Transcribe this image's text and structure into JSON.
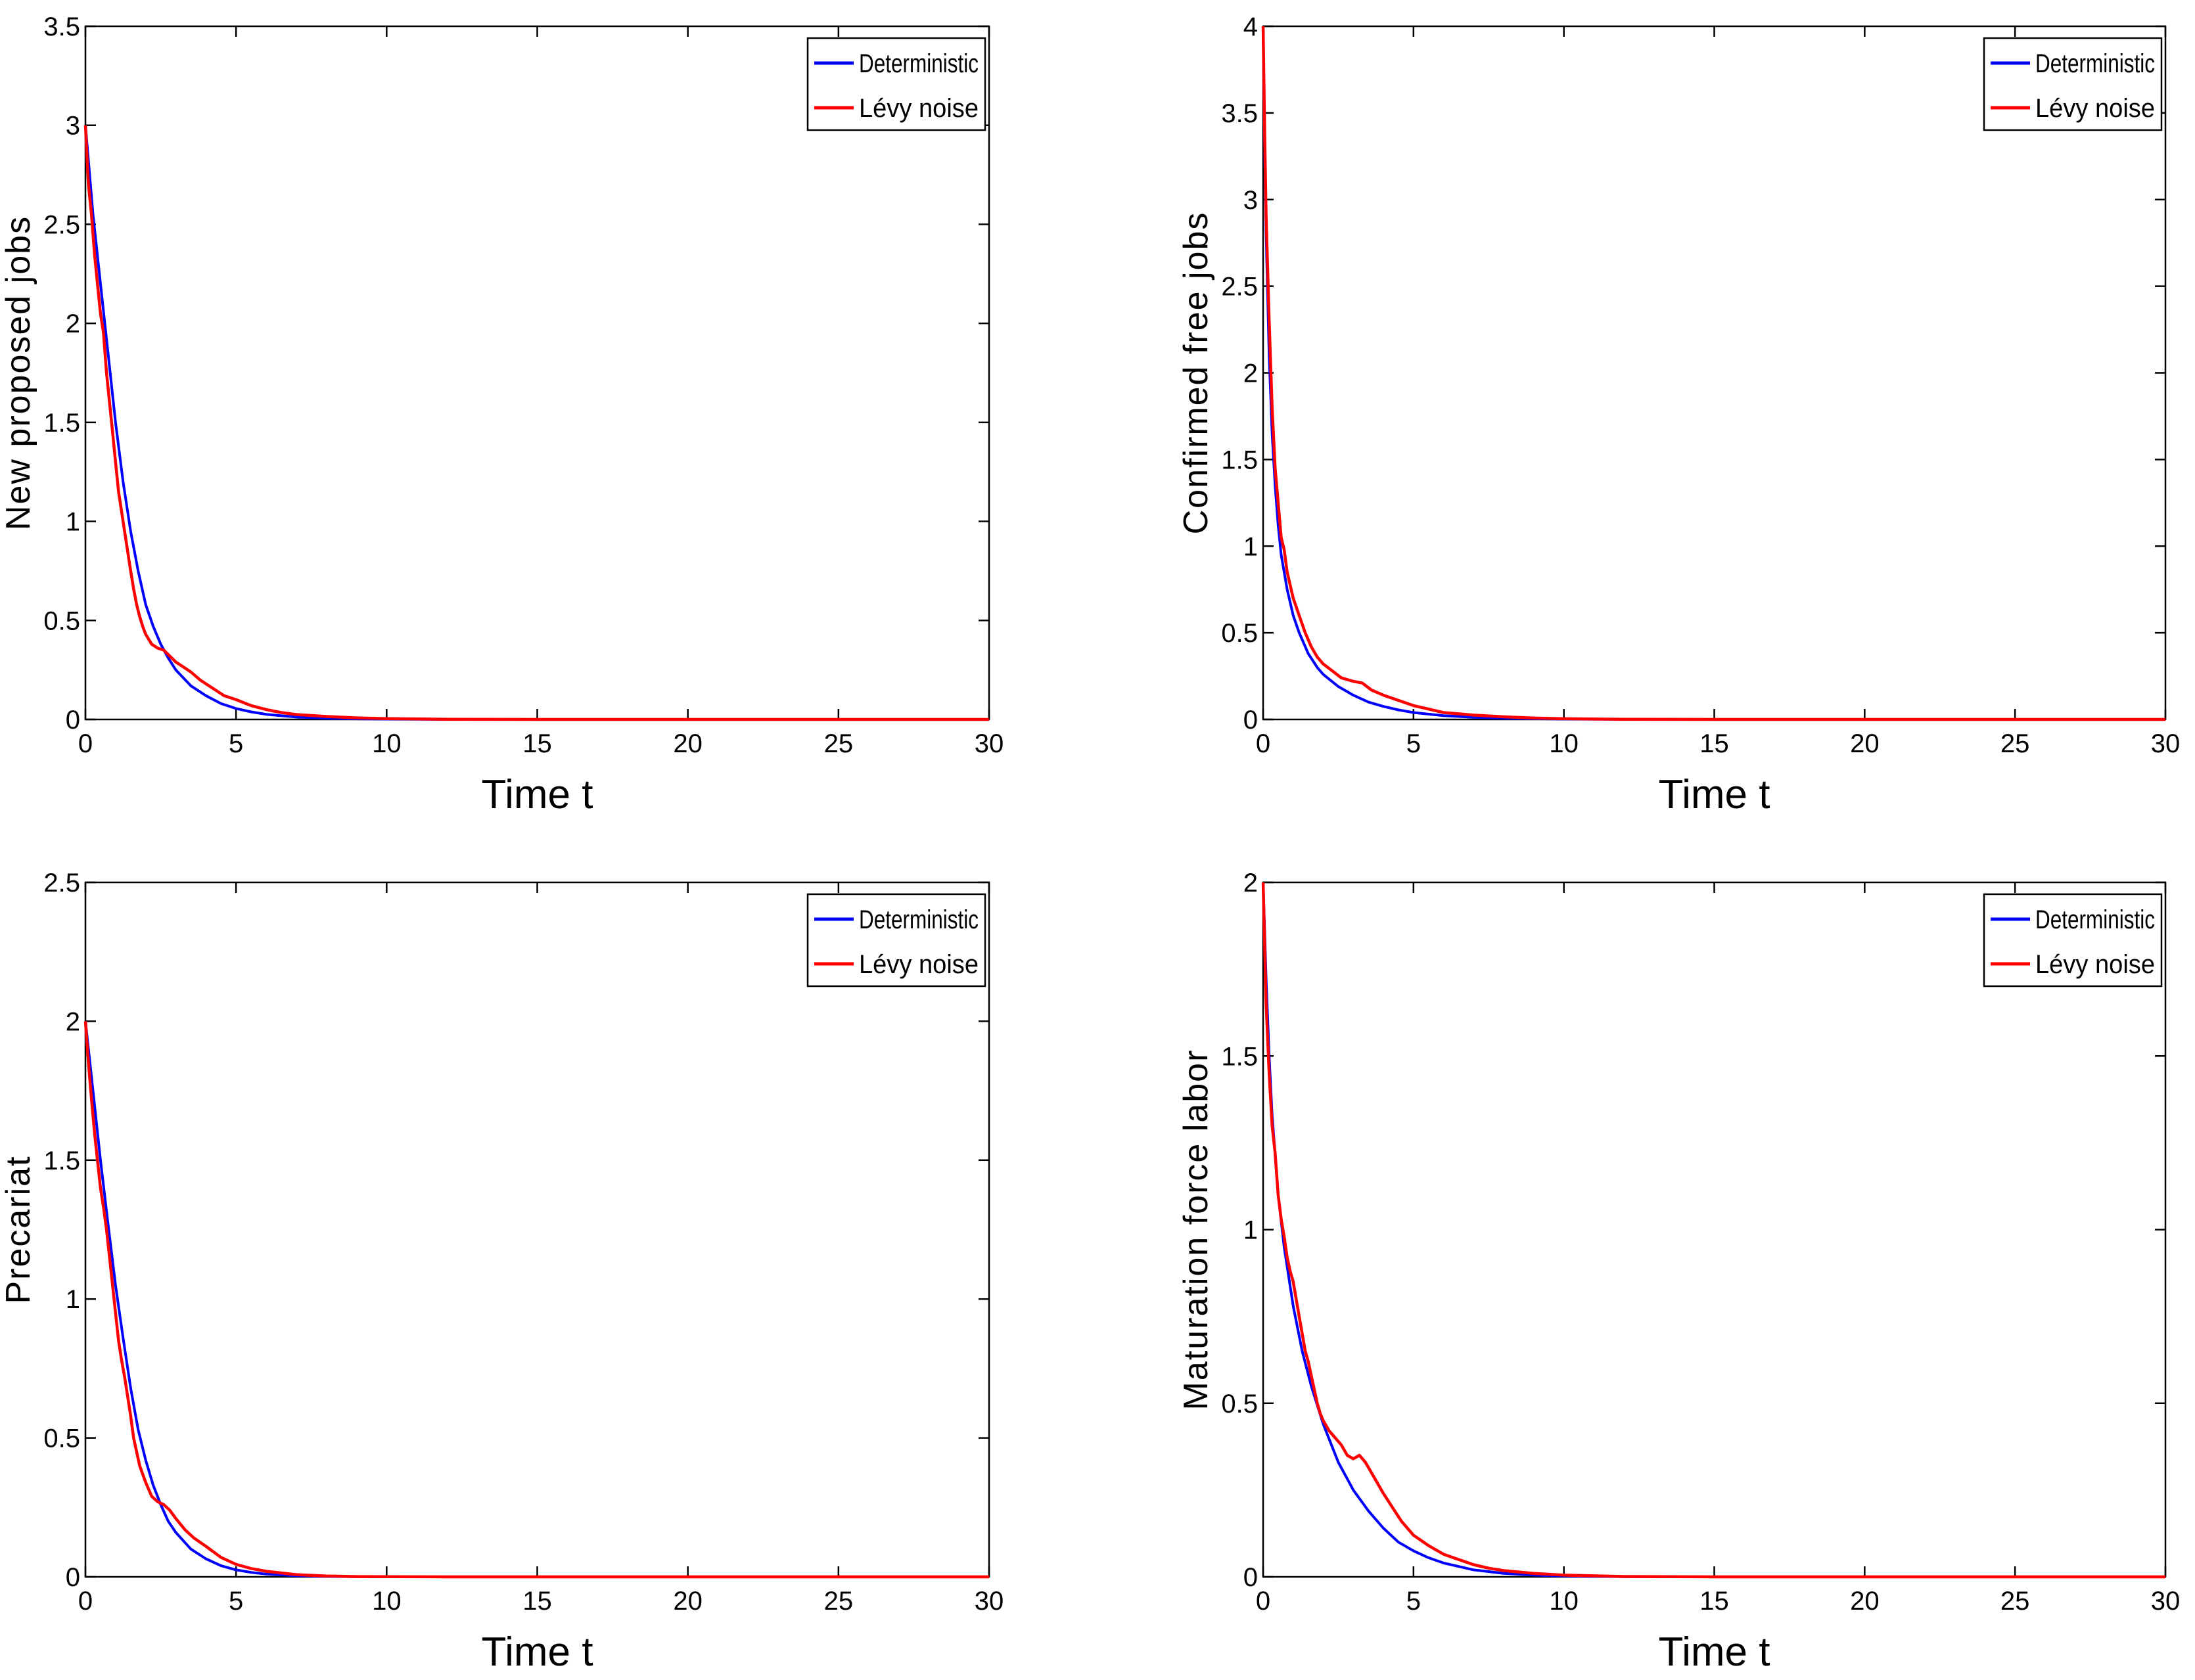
{
  "colors": {
    "deterministic": "#0000ff",
    "levy": "#ff0000"
  },
  "chart_data": [
    {
      "type": "line",
      "ylabel": "New proposed jobs",
      "xlabel": "Time t",
      "xlim": [
        0,
        30
      ],
      "ylim": [
        0,
        3.5
      ],
      "xticks": [
        0,
        5,
        10,
        15,
        20,
        25,
        30
      ],
      "yticks": [
        0,
        0.5,
        1,
        1.5,
        2,
        2.5,
        3,
        3.5
      ],
      "grid": false,
      "legend_position": "top-right",
      "series": [
        {
          "name": "Deterministic",
          "color": "#0000ff",
          "x": [
            0,
            0.25,
            0.5,
            0.75,
            1,
            1.25,
            1.5,
            1.75,
            2,
            2.25,
            2.5,
            2.75,
            3,
            3.5,
            4,
            4.5,
            5,
            5.5,
            6,
            7,
            8,
            9,
            10,
            12,
            15,
            20,
            25,
            30
          ],
          "y": [
            3.0,
            2.55,
            2.2,
            1.85,
            1.5,
            1.2,
            0.95,
            0.75,
            0.58,
            0.47,
            0.38,
            0.31,
            0.25,
            0.17,
            0.12,
            0.08,
            0.055,
            0.038,
            0.026,
            0.012,
            0.006,
            0.003,
            0.0015,
            0.0004,
            0,
            0,
            0,
            0
          ]
        },
        {
          "name": "Lévy noise",
          "color": "#ff0000",
          "x": [
            0,
            0.1,
            0.2,
            0.3,
            0.4,
            0.5,
            0.6,
            0.7,
            0.8,
            0.9,
            1.0,
            1.1,
            1.2,
            1.3,
            1.4,
            1.5,
            1.6,
            1.7,
            1.8,
            1.9,
            2.0,
            2.2,
            2.4,
            2.6,
            2.8,
            3.0,
            3.2,
            3.5,
            3.8,
            4.0,
            4.3,
            4.6,
            5.0,
            5.5,
            6.0,
            6.5,
            7.0,
            8.0,
            9.0,
            10,
            12,
            15,
            20,
            25,
            30
          ],
          "y": [
            3.0,
            2.7,
            2.55,
            2.35,
            2.2,
            2.05,
            1.95,
            1.75,
            1.6,
            1.45,
            1.3,
            1.15,
            1.05,
            0.95,
            0.85,
            0.75,
            0.66,
            0.58,
            0.52,
            0.47,
            0.43,
            0.38,
            0.36,
            0.35,
            0.32,
            0.29,
            0.27,
            0.24,
            0.2,
            0.18,
            0.15,
            0.12,
            0.1,
            0.07,
            0.05,
            0.035,
            0.025,
            0.015,
            0.008,
            0.004,
            0.001,
            0,
            0,
            0,
            0
          ]
        }
      ]
    },
    {
      "type": "line",
      "ylabel": "Confirmed free jobs",
      "xlabel": "Time t",
      "xlim": [
        0,
        30
      ],
      "ylim": [
        0,
        4
      ],
      "xticks": [
        0,
        5,
        10,
        15,
        20,
        25,
        30
      ],
      "yticks": [
        0,
        0.5,
        1,
        1.5,
        2,
        2.5,
        3,
        3.5,
        4
      ],
      "grid": false,
      "legend_position": "top-right",
      "series": [
        {
          "name": "Deterministic",
          "color": "#0000ff",
          "x": [
            0,
            0.05,
            0.1,
            0.2,
            0.3,
            0.4,
            0.5,
            0.6,
            0.8,
            1.0,
            1.2,
            1.5,
            1.8,
            2.0,
            2.5,
            3.0,
            3.5,
            4.0,
            4.5,
            5.0,
            6.0,
            7.0,
            8.0,
            10,
            12,
            15,
            20,
            25,
            30
          ],
          "y": [
            4.0,
            3.3,
            2.8,
            2.1,
            1.65,
            1.35,
            1.12,
            0.95,
            0.75,
            0.6,
            0.5,
            0.38,
            0.3,
            0.26,
            0.19,
            0.14,
            0.1,
            0.075,
            0.055,
            0.04,
            0.022,
            0.012,
            0.007,
            0.002,
            0.0006,
            0,
            0,
            0,
            0
          ]
        },
        {
          "name": "Lévy noise",
          "color": "#ff0000",
          "x": [
            0,
            0.05,
            0.1,
            0.2,
            0.3,
            0.4,
            0.5,
            0.6,
            0.7,
            0.8,
            1.0,
            1.2,
            1.4,
            1.6,
            1.8,
            2.0,
            2.3,
            2.6,
            3.0,
            3.3,
            3.6,
            4.0,
            4.5,
            5.0,
            5.5,
            6.0,
            7.0,
            8.0,
            9.0,
            10,
            12,
            15,
            20,
            25,
            30
          ],
          "y": [
            4.0,
            3.4,
            2.9,
            2.3,
            1.8,
            1.45,
            1.25,
            1.05,
            0.98,
            0.85,
            0.7,
            0.6,
            0.5,
            0.42,
            0.36,
            0.32,
            0.28,
            0.24,
            0.22,
            0.21,
            0.17,
            0.14,
            0.11,
            0.08,
            0.06,
            0.04,
            0.025,
            0.015,
            0.008,
            0.004,
            0.001,
            0,
            0,
            0,
            0
          ]
        }
      ]
    },
    {
      "type": "line",
      "ylabel": "Precariat",
      "xlabel": "Time t",
      "xlim": [
        0,
        30
      ],
      "ylim": [
        0,
        2.5
      ],
      "xticks": [
        0,
        5,
        10,
        15,
        20,
        25,
        30
      ],
      "yticks": [
        0,
        0.5,
        1,
        1.5,
        2,
        2.5
      ],
      "grid": false,
      "legend_position": "top-right",
      "series": [
        {
          "name": "Deterministic",
          "color": "#0000ff",
          "x": [
            0,
            0.25,
            0.5,
            0.75,
            1.0,
            1.25,
            1.5,
            1.75,
            2.0,
            2.25,
            2.5,
            2.75,
            3.0,
            3.5,
            4.0,
            4.5,
            5.0,
            5.5,
            6.0,
            7.0,
            8.0,
            9.0,
            10,
            12,
            15,
            20,
            25,
            30
          ],
          "y": [
            2.0,
            1.75,
            1.5,
            1.27,
            1.05,
            0.86,
            0.68,
            0.53,
            0.42,
            0.33,
            0.26,
            0.2,
            0.16,
            0.1,
            0.065,
            0.04,
            0.025,
            0.016,
            0.01,
            0.004,
            0.0015,
            0.0006,
            0.0002,
            0,
            0,
            0,
            0,
            0
          ]
        },
        {
          "name": "Lévy noise",
          "color": "#ff0000",
          "x": [
            0,
            0.1,
            0.2,
            0.3,
            0.4,
            0.5,
            0.6,
            0.7,
            0.8,
            0.9,
            1.0,
            1.1,
            1.2,
            1.3,
            1.4,
            1.5,
            1.6,
            1.7,
            1.8,
            2.0,
            2.2,
            2.4,
            2.6,
            2.8,
            3.0,
            3.3,
            3.6,
            4.0,
            4.5,
            5.0,
            5.5,
            6.0,
            7.0,
            8.0,
            9.0,
            10,
            12,
            15,
            20,
            25,
            30
          ],
          "y": [
            2.0,
            1.85,
            1.72,
            1.6,
            1.5,
            1.4,
            1.33,
            1.25,
            1.15,
            1.05,
            0.95,
            0.85,
            0.78,
            0.72,
            0.65,
            0.58,
            0.5,
            0.45,
            0.4,
            0.34,
            0.29,
            0.27,
            0.26,
            0.24,
            0.21,
            0.17,
            0.14,
            0.11,
            0.07,
            0.045,
            0.03,
            0.02,
            0.008,
            0.003,
            0.001,
            0.0005,
            0,
            0,
            0,
            0,
            0
          ]
        }
      ]
    },
    {
      "type": "line",
      "ylabel": "Maturation force labor",
      "xlabel": "Time t",
      "xlim": [
        0,
        30
      ],
      "ylim": [
        0,
        2
      ],
      "xticks": [
        0,
        5,
        10,
        15,
        20,
        25,
        30
      ],
      "yticks": [
        0,
        0.5,
        1,
        1.5,
        2
      ],
      "grid": false,
      "legend_position": "top-right",
      "series": [
        {
          "name": "Deterministic",
          "color": "#0000ff",
          "x": [
            0,
            0.1,
            0.2,
            0.3,
            0.5,
            0.7,
            1.0,
            1.3,
            1.6,
            2.0,
            2.5,
            3.0,
            3.5,
            4.0,
            4.5,
            5.0,
            5.5,
            6.0,
            7.0,
            8.0,
            9.0,
            10,
            12,
            15,
            20,
            25,
            30
          ],
          "y": [
            2.0,
            1.72,
            1.5,
            1.33,
            1.1,
            0.95,
            0.78,
            0.65,
            0.55,
            0.44,
            0.33,
            0.25,
            0.19,
            0.14,
            0.1,
            0.075,
            0.055,
            0.04,
            0.02,
            0.01,
            0.005,
            0.0025,
            0.0006,
            0,
            0,
            0,
            0
          ]
        },
        {
          "name": "Lévy noise",
          "color": "#ff0000",
          "x": [
            0,
            0.1,
            0.2,
            0.3,
            0.4,
            0.5,
            0.6,
            0.7,
            0.8,
            0.9,
            1.0,
            1.1,
            1.2,
            1.3,
            1.4,
            1.5,
            1.6,
            1.7,
            1.8,
            1.9,
            2.0,
            2.2,
            2.4,
            2.6,
            2.8,
            3.0,
            3.2,
            3.4,
            3.6,
            3.8,
            4.0,
            4.3,
            4.6,
            5.0,
            5.5,
            6.0,
            6.5,
            7.0,
            7.5,
            8.0,
            9.0,
            10,
            12,
            15,
            20,
            25,
            30
          ],
          "y": [
            2.0,
            1.65,
            1.45,
            1.3,
            1.22,
            1.1,
            1.03,
            0.98,
            0.92,
            0.88,
            0.85,
            0.8,
            0.75,
            0.7,
            0.65,
            0.62,
            0.58,
            0.54,
            0.5,
            0.47,
            0.45,
            0.42,
            0.4,
            0.38,
            0.35,
            0.34,
            0.35,
            0.33,
            0.3,
            0.27,
            0.24,
            0.2,
            0.16,
            0.12,
            0.09,
            0.065,
            0.05,
            0.035,
            0.025,
            0.018,
            0.01,
            0.005,
            0.001,
            0,
            0,
            0,
            0
          ]
        }
      ]
    }
  ]
}
